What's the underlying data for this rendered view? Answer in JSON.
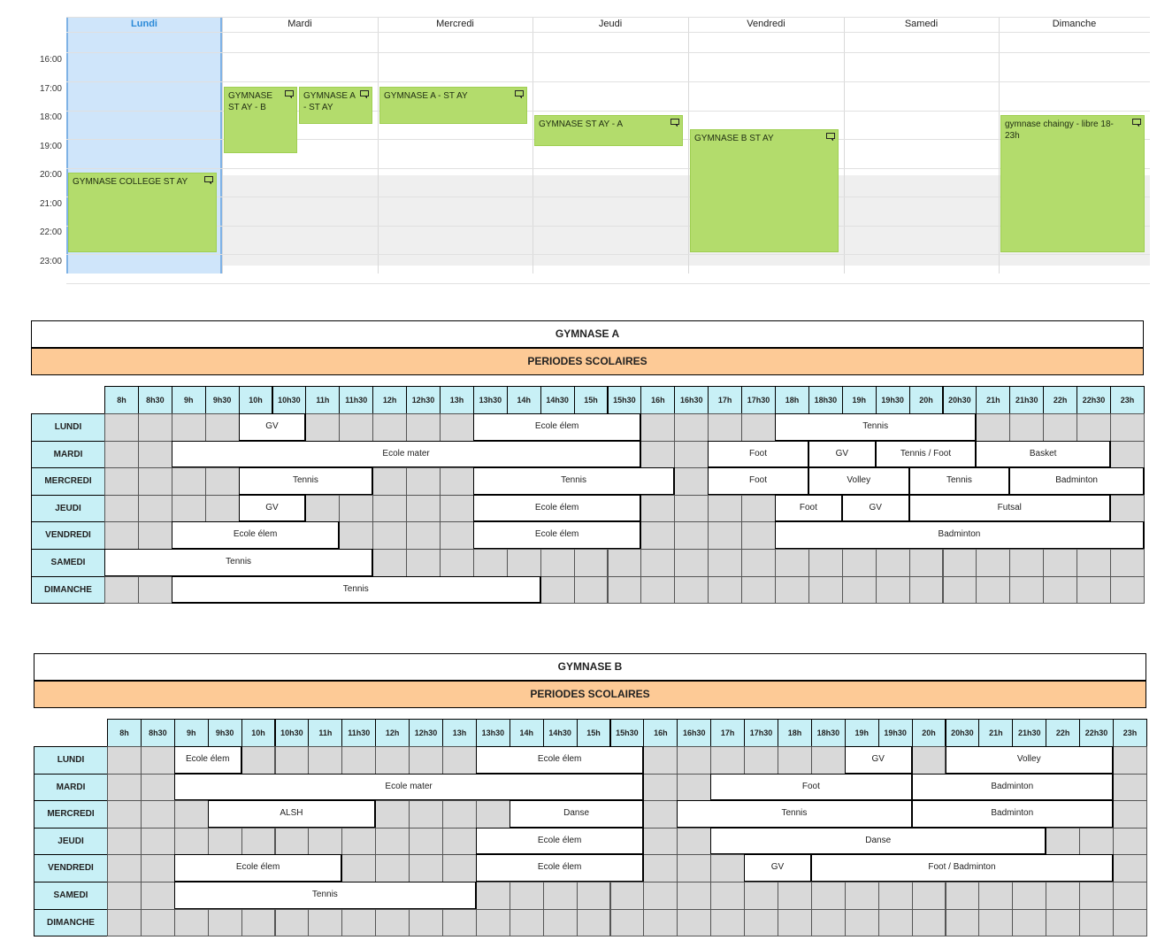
{
  "calendar": {
    "days": [
      "Lundi",
      "Mardi",
      "Mercredi",
      "Jeudi",
      "Vendredi",
      "Samedi",
      "Dimanche"
    ],
    "times": [
      "16:00",
      "17:00",
      "18:00",
      "19:00",
      "20:00",
      "21:00",
      "22:00",
      "23:00"
    ],
    "events": [
      {
        "title": "GYMNASE COLLEGE ST AY",
        "day": 0,
        "start": 20,
        "end": 22.7
      },
      {
        "title": "GYMNASE ST AY - B",
        "day": 1,
        "start": 17,
        "end": 19.25,
        "lane": 0,
        "lanes": 2
      },
      {
        "title": "GYMNASE A - ST AY",
        "day": 1,
        "start": 17,
        "end": 18.25,
        "lane": 1,
        "lanes": 2
      },
      {
        "title": "GYMNASE A - ST AY",
        "day": 2,
        "start": 17,
        "end": 18.25
      },
      {
        "title": "GYMNASE ST AY - A",
        "day": 3,
        "start": 18,
        "end": 19
      },
      {
        "title": "GYMNASE B ST AY",
        "day": 4,
        "start": 18.5,
        "end": 22.7
      },
      {
        "title": "gymnase chaingy - libre 18-23h",
        "day": 6,
        "start": 18,
        "end": 22.7
      }
    ]
  },
  "hours": [
    "8h",
    "8h30",
    "9h",
    "9h30",
    "10h",
    "10h30",
    "11h",
    "11h30",
    "12h",
    "12h30",
    "13h",
    "13h30",
    "14h",
    "14h30",
    "15h",
    "15h30",
    "16h",
    "16h30",
    "17h",
    "17h30",
    "18h",
    "18h30",
    "19h",
    "19h30",
    "20h",
    "20h30",
    "21h",
    "21h30",
    "22h",
    "22h30",
    "23h"
  ],
  "gymnases": [
    {
      "title": "GYMNASE A",
      "period": "PERIODES SCOLAIRES",
      "days": [
        {
          "name": "LUNDI",
          "activities": [
            {
              "label": "GV",
              "start": 4,
              "span": 2
            },
            {
              "label": "Ecole élem",
              "start": 11,
              "span": 5
            },
            {
              "label": "Tennis",
              "start": 20,
              "span": 6
            }
          ]
        },
        {
          "name": "MARDI",
          "activities": [
            {
              "label": "Ecole mater",
              "start": 2,
              "span": 14
            },
            {
              "label": "Foot",
              "start": 18,
              "span": 3
            },
            {
              "label": "GV",
              "start": 21,
              "span": 2
            },
            {
              "label": "Tennis / Foot",
              "start": 23,
              "span": 3
            },
            {
              "label": "Basket",
              "start": 26,
              "span": 4
            }
          ]
        },
        {
          "name": "MERCREDI",
          "activities": [
            {
              "label": "Tennis",
              "start": 4,
              "span": 4
            },
            {
              "label": "Tennis",
              "start": 11,
              "span": 6
            },
            {
              "label": "Foot",
              "start": 18,
              "span": 3
            },
            {
              "label": "Volley",
              "start": 21,
              "span": 3
            },
            {
              "label": "Tennis",
              "start": 24,
              "span": 3
            },
            {
              "label": "Badminton",
              "start": 27,
              "span": 4
            }
          ]
        },
        {
          "name": "JEUDI",
          "activities": [
            {
              "label": "GV",
              "start": 4,
              "span": 2
            },
            {
              "label": "Ecole élem",
              "start": 11,
              "span": 5
            },
            {
              "label": "Foot",
              "start": 20,
              "span": 2
            },
            {
              "label": "GV",
              "start": 22,
              "span": 2
            },
            {
              "label": "Futsal",
              "start": 24,
              "span": 6
            }
          ]
        },
        {
          "name": "VENDREDI",
          "activities": [
            {
              "label": "Ecole élem",
              "start": 2,
              "span": 5
            },
            {
              "label": "Ecole élem",
              "start": 11,
              "span": 5
            },
            {
              "label": "Badminton",
              "start": 20,
              "span": 11
            }
          ]
        },
        {
          "name": "SAMEDI",
          "activities": [
            {
              "label": "Tennis",
              "start": 0,
              "span": 8
            }
          ]
        },
        {
          "name": "DIMANCHE",
          "activities": [
            {
              "label": "Tennis",
              "start": 2,
              "span": 11
            }
          ]
        }
      ]
    },
    {
      "title": "GYMNASE B",
      "period": "PERIODES SCOLAIRES",
      "days": [
        {
          "name": "LUNDI",
          "activities": [
            {
              "label": "Ecole élem",
              "start": 2,
              "span": 2
            },
            {
              "label": "Ecole élem",
              "start": 11,
              "span": 5
            },
            {
              "label": "GV",
              "start": 22,
              "span": 2
            },
            {
              "label": "Volley",
              "start": 25,
              "span": 5
            }
          ]
        },
        {
          "name": "MARDI",
          "activities": [
            {
              "label": "Ecole mater",
              "start": 2,
              "span": 14
            },
            {
              "label": "Foot",
              "start": 18,
              "span": 6
            },
            {
              "label": "Badminton",
              "start": 24,
              "span": 6
            }
          ]
        },
        {
          "name": "MERCREDI",
          "activities": [
            {
              "label": "ALSH",
              "start": 3,
              "span": 5
            },
            {
              "label": "Danse",
              "start": 12,
              "span": 4
            },
            {
              "label": "Tennis",
              "start": 17,
              "span": 7
            },
            {
              "label": "Badminton",
              "start": 24,
              "span": 6
            }
          ]
        },
        {
          "name": "JEUDI",
          "activities": [
            {
              "label": "Ecole élem",
              "start": 11,
              "span": 5
            },
            {
              "label": "Danse",
              "start": 18,
              "span": 10
            }
          ]
        },
        {
          "name": "VENDREDI",
          "activities": [
            {
              "label": "Ecole élem",
              "start": 2,
              "span": 5
            },
            {
              "label": "Ecole élem",
              "start": 11,
              "span": 5
            },
            {
              "label": "GV",
              "start": 19,
              "span": 2
            },
            {
              "label": "Foot / Badminton",
              "start": 21,
              "span": 9
            }
          ]
        },
        {
          "name": "SAMEDI",
          "activities": [
            {
              "label": "Tennis",
              "start": 2,
              "span": 9
            }
          ]
        },
        {
          "name": "DIMANCHE",
          "activities": []
        }
      ]
    }
  ],
  "colors": {
    "event_green": "#b3dc6c",
    "today_blue": "#cfe5fa",
    "header_cyan": "#c8f0f6",
    "period_orange": "#fdca96",
    "empty_gray": "#d9d9d9"
  },
  "icons": [
    "comment-icon"
  ]
}
